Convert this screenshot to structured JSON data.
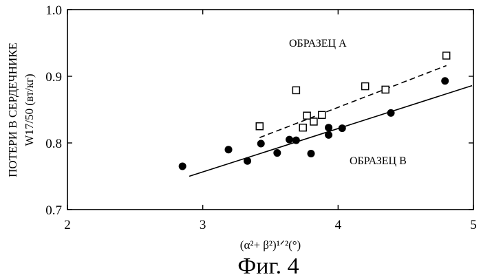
{
  "chart_data": {
    "type": "scatter",
    "xlim": [
      2,
      5
    ],
    "ylim": [
      0.7,
      1.0
    ],
    "xticks": [
      "2",
      "3",
      "4",
      "5"
    ],
    "yticks": [
      "0.7",
      "0.8",
      "0.9",
      "1.0"
    ],
    "xlabel": "(α²+ β²)¹ᐟ²(°)",
    "ylabel_lines": [
      "ПОТЕРИ В СЕРДЕЧНИКЕ",
      "W17/50 (вт/кг)"
    ],
    "grid": false,
    "series": [
      {
        "name": "ОБРАЗЕЦ А",
        "marker": "open-square",
        "color": "#000000",
        "points": [
          {
            "x": 3.42,
            "y": 0.825
          },
          {
            "x": 3.69,
            "y": 0.879
          },
          {
            "x": 3.74,
            "y": 0.823
          },
          {
            "x": 3.77,
            "y": 0.841
          },
          {
            "x": 3.82,
            "y": 0.832
          },
          {
            "x": 3.88,
            "y": 0.842
          },
          {
            "x": 4.2,
            "y": 0.885
          },
          {
            "x": 4.35,
            "y": 0.88
          },
          {
            "x": 4.8,
            "y": 0.931
          }
        ],
        "trendline": {
          "style": "dashed",
          "x": [
            3.42,
            4.8
          ],
          "y": [
            0.808,
            0.916
          ]
        }
      },
      {
        "name": "ОБРАЗЕЦ В",
        "marker": "filled-circle",
        "color": "#000000",
        "points": [
          {
            "x": 2.85,
            "y": 0.765
          },
          {
            "x": 3.19,
            "y": 0.79
          },
          {
            "x": 3.33,
            "y": 0.773
          },
          {
            "x": 3.43,
            "y": 0.799
          },
          {
            "x": 3.55,
            "y": 0.785
          },
          {
            "x": 3.64,
            "y": 0.805
          },
          {
            "x": 3.69,
            "y": 0.804
          },
          {
            "x": 3.8,
            "y": 0.784
          },
          {
            "x": 3.93,
            "y": 0.823
          },
          {
            "x": 3.93,
            "y": 0.812
          },
          {
            "x": 4.03,
            "y": 0.822
          },
          {
            "x": 4.39,
            "y": 0.845
          },
          {
            "x": 4.79,
            "y": 0.893
          }
        ],
        "trendline": {
          "style": "solid",
          "x": [
            2.9,
            4.99
          ],
          "y": [
            0.75,
            0.886
          ]
        }
      }
    ]
  },
  "caption": "Фиг. 4"
}
